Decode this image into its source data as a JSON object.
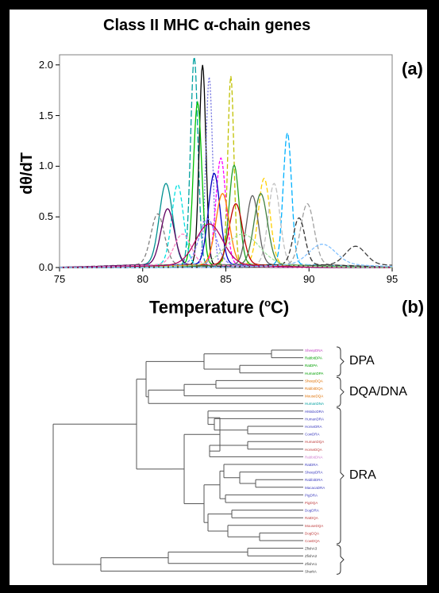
{
  "figure": {
    "title": "Class II MHC α-chain genes",
    "panel_a_label": "(a)",
    "panel_b_label": "(b)"
  },
  "chart_data": {
    "type": "line",
    "title": "Class II MHC α-chain genes",
    "xlabel_main": "Temperature (",
    "xlabel_sup": "o",
    "xlabel_end": "C)",
    "ylabel": "dθ/dT",
    "xlim": [
      75,
      95
    ],
    "ylim": [
      0,
      2.1
    ],
    "xticks": [
      "75",
      "80",
      "85",
      "90",
      "95"
    ],
    "yticks": [
      "0.0",
      "0.5",
      "1.0",
      "1.5",
      "2.0"
    ],
    "grid": false,
    "series": [
      {
        "color": "#00a0a0",
        "dash": "8,3",
        "peak": 83.1,
        "height": 2.05,
        "width": 0.22
      },
      {
        "color": "#000000",
        "dash": "",
        "peak": 83.6,
        "height": 1.97,
        "width": 0.2
      },
      {
        "color": "#7070e0",
        "dash": "2,2",
        "peak": 84.0,
        "height": 1.85,
        "width": 0.2
      },
      {
        "color": "#c0c000",
        "dash": "6,3",
        "peak": 85.3,
        "height": 1.86,
        "width": 0.18
      },
      {
        "color": "#00b0ff",
        "dash": "7,3",
        "peak": 88.7,
        "height": 1.3,
        "width": 0.25
      },
      {
        "color": "#00c000",
        "dash": "",
        "peak": 83.3,
        "height": 1.6,
        "width": 0.25
      },
      {
        "color": "#ff00ff",
        "dash": "4,2",
        "peak": 84.7,
        "height": 1.05,
        "width": 0.3
      },
      {
        "color": "#ffd000",
        "dash": "6,3",
        "peak": 87.3,
        "height": 0.85,
        "width": 0.35
      },
      {
        "color": "#009090",
        "dash": "",
        "peak": 81.4,
        "height": 0.8,
        "width": 0.4
      },
      {
        "color": "#00e0e0",
        "dash": "5,3",
        "peak": 82.1,
        "height": 0.79,
        "width": 0.35
      },
      {
        "color": "#c0c0c0",
        "dash": "6,3",
        "peak": 87.9,
        "height": 0.8,
        "width": 0.35
      },
      {
        "color": "#a0a0a0",
        "dash": "6,3",
        "peak": 89.9,
        "height": 0.6,
        "width": 0.4
      },
      {
        "color": "#808080",
        "dash": "5,3",
        "peak": 80.9,
        "height": 0.5,
        "width": 0.4
      },
      {
        "color": "#600060",
        "dash": "",
        "peak": 81.5,
        "height": 0.55,
        "width": 0.4
      },
      {
        "color": "#20a020",
        "dash": "",
        "peak": 85.5,
        "height": 0.98,
        "width": 0.3
      },
      {
        "color": "#c00000",
        "dash": "",
        "peak": 85.6,
        "height": 0.6,
        "width": 0.4
      },
      {
        "color": "#0000c0",
        "dash": "",
        "peak": 84.3,
        "height": 0.9,
        "width": 0.35
      },
      {
        "color": "#ff8000",
        "dash": "",
        "peak": 84.8,
        "height": 0.7,
        "width": 0.4
      },
      {
        "color": "#606060",
        "dash": "",
        "peak": 86.6,
        "height": 0.68,
        "width": 0.35
      },
      {
        "color": "#408040",
        "dash": "",
        "peak": 87.1,
        "height": 0.7,
        "width": 0.4
      },
      {
        "color": "#303030",
        "dash": "6,3",
        "peak": 89.4,
        "height": 0.46,
        "width": 0.35
      },
      {
        "color": "#404040",
        "dash": "6,3",
        "peak": 92.8,
        "height": 0.18,
        "width": 0.6
      },
      {
        "color": "#ff80c0",
        "dash": "4,2",
        "peak": 82.4,
        "height": 0.3,
        "width": 0.5
      },
      {
        "color": "#8080ff",
        "dash": "4,2",
        "peak": 83.9,
        "height": 0.45,
        "width": 0.5
      },
      {
        "color": "#b00060",
        "dash": "",
        "peak": 84.0,
        "height": 0.4,
        "width": 0.8
      },
      {
        "color": "#a0e0a0",
        "dash": "4,2",
        "peak": 86.0,
        "height": 0.3,
        "width": 1.0
      },
      {
        "color": "#80c0ff",
        "dash": "4,2",
        "peak": 90.8,
        "height": 0.2,
        "width": 0.8
      }
    ]
  },
  "dendrogram": {
    "leaves": [
      {
        "name": "SheepDNA",
        "color": "#c040c0"
      },
      {
        "name": "RabbitDPA",
        "color": "#00a000"
      },
      {
        "name": "RatDPA",
        "color": "#00a000"
      },
      {
        "name": "HumanDPA",
        "color": "#00a000"
      },
      {
        "name": "SheepDQA",
        "color": "#e07000"
      },
      {
        "name": "RabbitDQA",
        "color": "#e07000"
      },
      {
        "name": "MouseDQA",
        "color": "#e07000"
      },
      {
        "name": "HumanDNA",
        "color": "#00a0a0"
      },
      {
        "name": "HMaboDRA",
        "color": "#4040c0"
      },
      {
        "name": "HumanDRA",
        "color": "#4040c0"
      },
      {
        "name": "HorseDRA",
        "color": "#4040c0"
      },
      {
        "name": "CowDRA",
        "color": "#4040c0"
      },
      {
        "name": "HumanDQA",
        "color": "#c04040"
      },
      {
        "name": "HorseDQA",
        "color": "#c04040"
      },
      {
        "name": "RabbitDNA",
        "color": "#d080d0"
      },
      {
        "name": "RatDRA",
        "color": "#4040c0"
      },
      {
        "name": "SheepDRA",
        "color": "#4040c0"
      },
      {
        "name": "RabbitDRA",
        "color": "#4040c0"
      },
      {
        "name": "MacacaDRA",
        "color": "#4040c0"
      },
      {
        "name": "PigDRA",
        "color": "#4040c0"
      },
      {
        "name": "PigDQA",
        "color": "#c04040"
      },
      {
        "name": "DogDRA",
        "color": "#4040c0"
      },
      {
        "name": "RatDQA",
        "color": "#c04040"
      },
      {
        "name": "MouseDQA",
        "color": "#c04040"
      },
      {
        "name": "DogDQA",
        "color": "#c04040"
      },
      {
        "name": "CowDQA",
        "color": "#c04040"
      },
      {
        "name": "ZfishA3",
        "color": "#404040"
      },
      {
        "name": "ZfishA2",
        "color": "#404040"
      },
      {
        "name": "ZfishA1",
        "color": "#404040"
      },
      {
        "name": "SharkA",
        "color": "#404040"
      }
    ],
    "clades": [
      {
        "label": "DPA",
        "from": 0,
        "to": 3
      },
      {
        "label": "DQA/DNA",
        "from": 4,
        "to": 7
      },
      {
        "label": "DRA",
        "from": 8,
        "to": 25
      },
      {
        "label": "",
        "from": 26,
        "to": 29
      }
    ]
  }
}
